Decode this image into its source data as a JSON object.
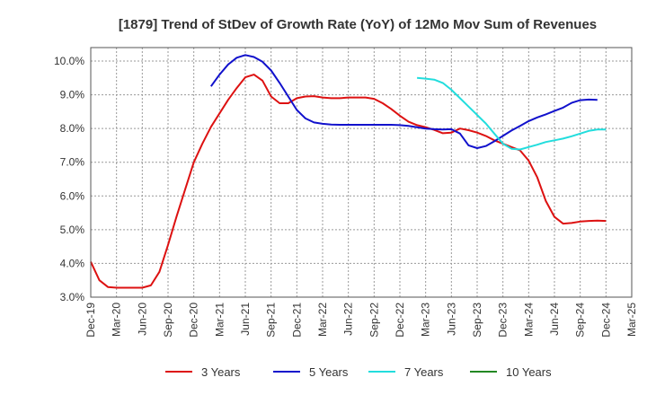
{
  "chart_data": {
    "type": "line",
    "title": "[1879]  Trend of StDev of Growth Rate (YoY) of 12Mo Mov Sum of Revenues",
    "xlabel": "",
    "ylabel": "",
    "grid": true,
    "legend_position": "bottom",
    "ylim": [
      3.0,
      10.4
    ],
    "y_ticks": [
      3.0,
      4.0,
      5.0,
      6.0,
      7.0,
      8.0,
      9.0,
      10.0
    ],
    "y_tick_labels": [
      "3.0%",
      "4.0%",
      "5.0%",
      "6.0%",
      "7.0%",
      "8.0%",
      "9.0%",
      "10.0%"
    ],
    "x_range": [
      0,
      63
    ],
    "x_ticks": [
      0,
      3,
      6,
      9,
      12,
      15,
      18,
      21,
      24,
      27,
      30,
      33,
      36,
      39,
      42,
      45,
      48,
      51,
      54,
      57,
      60,
      63
    ],
    "x_tick_labels": [
      "Dec-19",
      "Mar-20",
      "Jun-20",
      "Sep-20",
      "Dec-20",
      "Mar-21",
      "Jun-21",
      "Sep-21",
      "Dec-21",
      "Mar-22",
      "Jun-22",
      "Sep-22",
      "Dec-22",
      "Mar-23",
      "Jun-23",
      "Sep-23",
      "Dec-23",
      "Mar-24",
      "Jun-24",
      "Sep-24",
      "Dec-24",
      "Mar-25"
    ],
    "series": [
      {
        "name": "3 Years",
        "color": "#dd1111",
        "x_start": 0,
        "values": [
          4.05,
          3.5,
          3.3,
          3.28,
          3.28,
          3.28,
          3.28,
          3.35,
          3.75,
          4.55,
          5.4,
          6.2,
          7.0,
          7.55,
          8.05,
          8.45,
          8.85,
          9.2,
          9.52,
          9.6,
          9.42,
          8.95,
          8.75,
          8.75,
          8.9,
          8.95,
          8.96,
          8.92,
          8.9,
          8.9,
          8.92,
          8.92,
          8.92,
          8.88,
          8.75,
          8.58,
          8.38,
          8.2,
          8.1,
          8.04,
          7.96,
          7.86,
          7.88,
          8.0,
          7.95,
          7.88,
          7.78,
          7.65,
          7.55,
          7.45,
          7.35,
          7.05,
          6.55,
          5.85,
          5.38,
          5.18,
          5.2,
          5.24,
          5.26,
          5.27,
          5.26
        ]
      },
      {
        "name": "5 Years",
        "color": "#1111cc",
        "x_start": 14,
        "values": [
          9.25,
          9.6,
          9.9,
          10.1,
          10.18,
          10.12,
          9.98,
          9.72,
          9.35,
          8.95,
          8.55,
          8.3,
          8.18,
          8.14,
          8.12,
          8.11,
          8.11,
          8.11,
          8.11,
          8.11,
          8.11,
          8.11,
          8.1,
          8.08,
          8.04,
          8.0,
          7.98,
          7.97,
          7.98,
          7.85,
          7.5,
          7.42,
          7.48,
          7.62,
          7.78,
          7.94,
          8.08,
          8.22,
          8.33,
          8.42,
          8.52,
          8.62,
          8.76,
          8.84,
          8.86,
          8.85
        ]
      },
      {
        "name": "7 Years",
        "color": "#22dddd",
        "x_start": 38,
        "values": [
          9.5,
          9.48,
          9.45,
          9.35,
          9.15,
          8.9,
          8.65,
          8.4,
          8.15,
          7.85,
          7.55,
          7.4,
          7.38,
          7.45,
          7.52,
          7.6,
          7.65,
          7.7,
          7.77,
          7.85,
          7.93,
          7.97,
          7.97
        ]
      },
      {
        "name": "10 Years",
        "color": "#228822",
        "x_start": 0,
        "values": []
      }
    ]
  }
}
